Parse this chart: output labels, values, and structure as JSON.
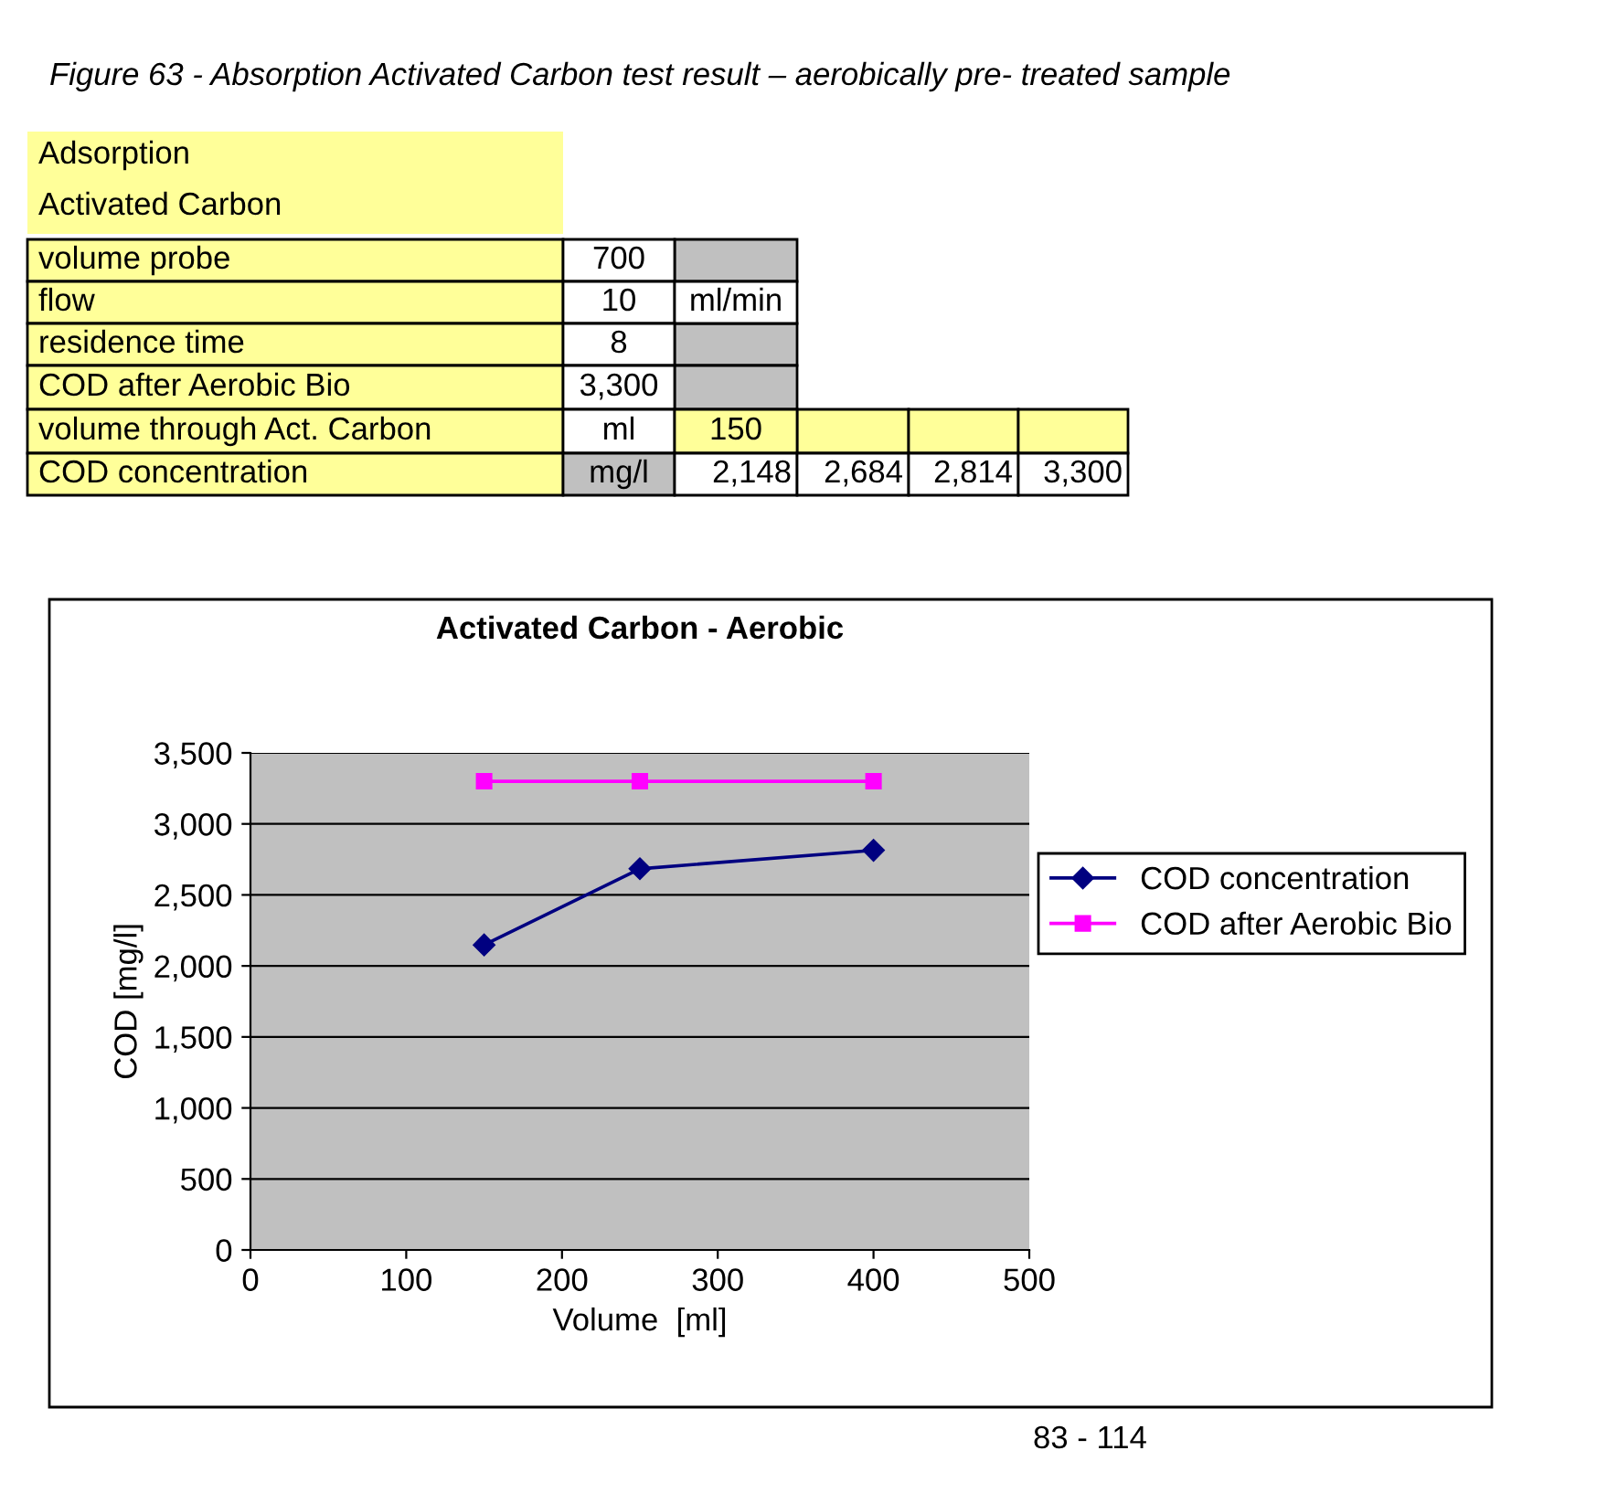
{
  "chart_data": {
    "type": "line",
    "title": "Activated Carbon - Aerobic",
    "xlabel": "Volume  [ml]",
    "ylabel": "COD [mg/l]",
    "series": [
      {
        "name": "COD concentration",
        "color": "#000080",
        "marker": "diamond",
        "x": [
          150,
          250,
          400
        ],
        "values": [
          2148,
          2684,
          2814
        ]
      },
      {
        "name": "COD after Aerobic Bio",
        "color": "#ff00ff",
        "marker": "square",
        "x": [
          150,
          250,
          400
        ],
        "values": [
          3300,
          3300,
          3300
        ]
      }
    ],
    "xlim": [
      0,
      500
    ],
    "xticks": [
      0,
      100,
      200,
      300,
      400,
      500
    ],
    "ylim": [
      0,
      3500
    ],
    "yticks": [
      0,
      500,
      {
        "value": 1000,
        "label": "1,000"
      },
      {
        "value": 1500,
        "label": "1,500"
      },
      {
        "value": 2000,
        "label": "2,000"
      },
      {
        "value": 2500,
        "label": "2,500"
      },
      {
        "value": 3000,
        "label": "3,000"
      },
      {
        "value": 3500,
        "label": "3,500"
      }
    ],
    "grid": "y",
    "legend": "right",
    "line_style": "solid",
    "annotations": [
      "Figure 63 - Absorption Activated Carbon test result – aerobically pre- treated sample",
      "Adsorption",
      "Activated Carbon",
      "volume probe",
      "700",
      "flow",
      "10",
      "ml/min",
      "residence time",
      "8",
      "COD after Aerobic Bio",
      "3,300",
      "volume through Act. Carbon",
      "ml",
      "150",
      "COD concentration",
      "mg/l",
      "2,148",
      "2,684",
      "2,814",
      "3,300",
      "83 - 114"
    ]
  }
}
